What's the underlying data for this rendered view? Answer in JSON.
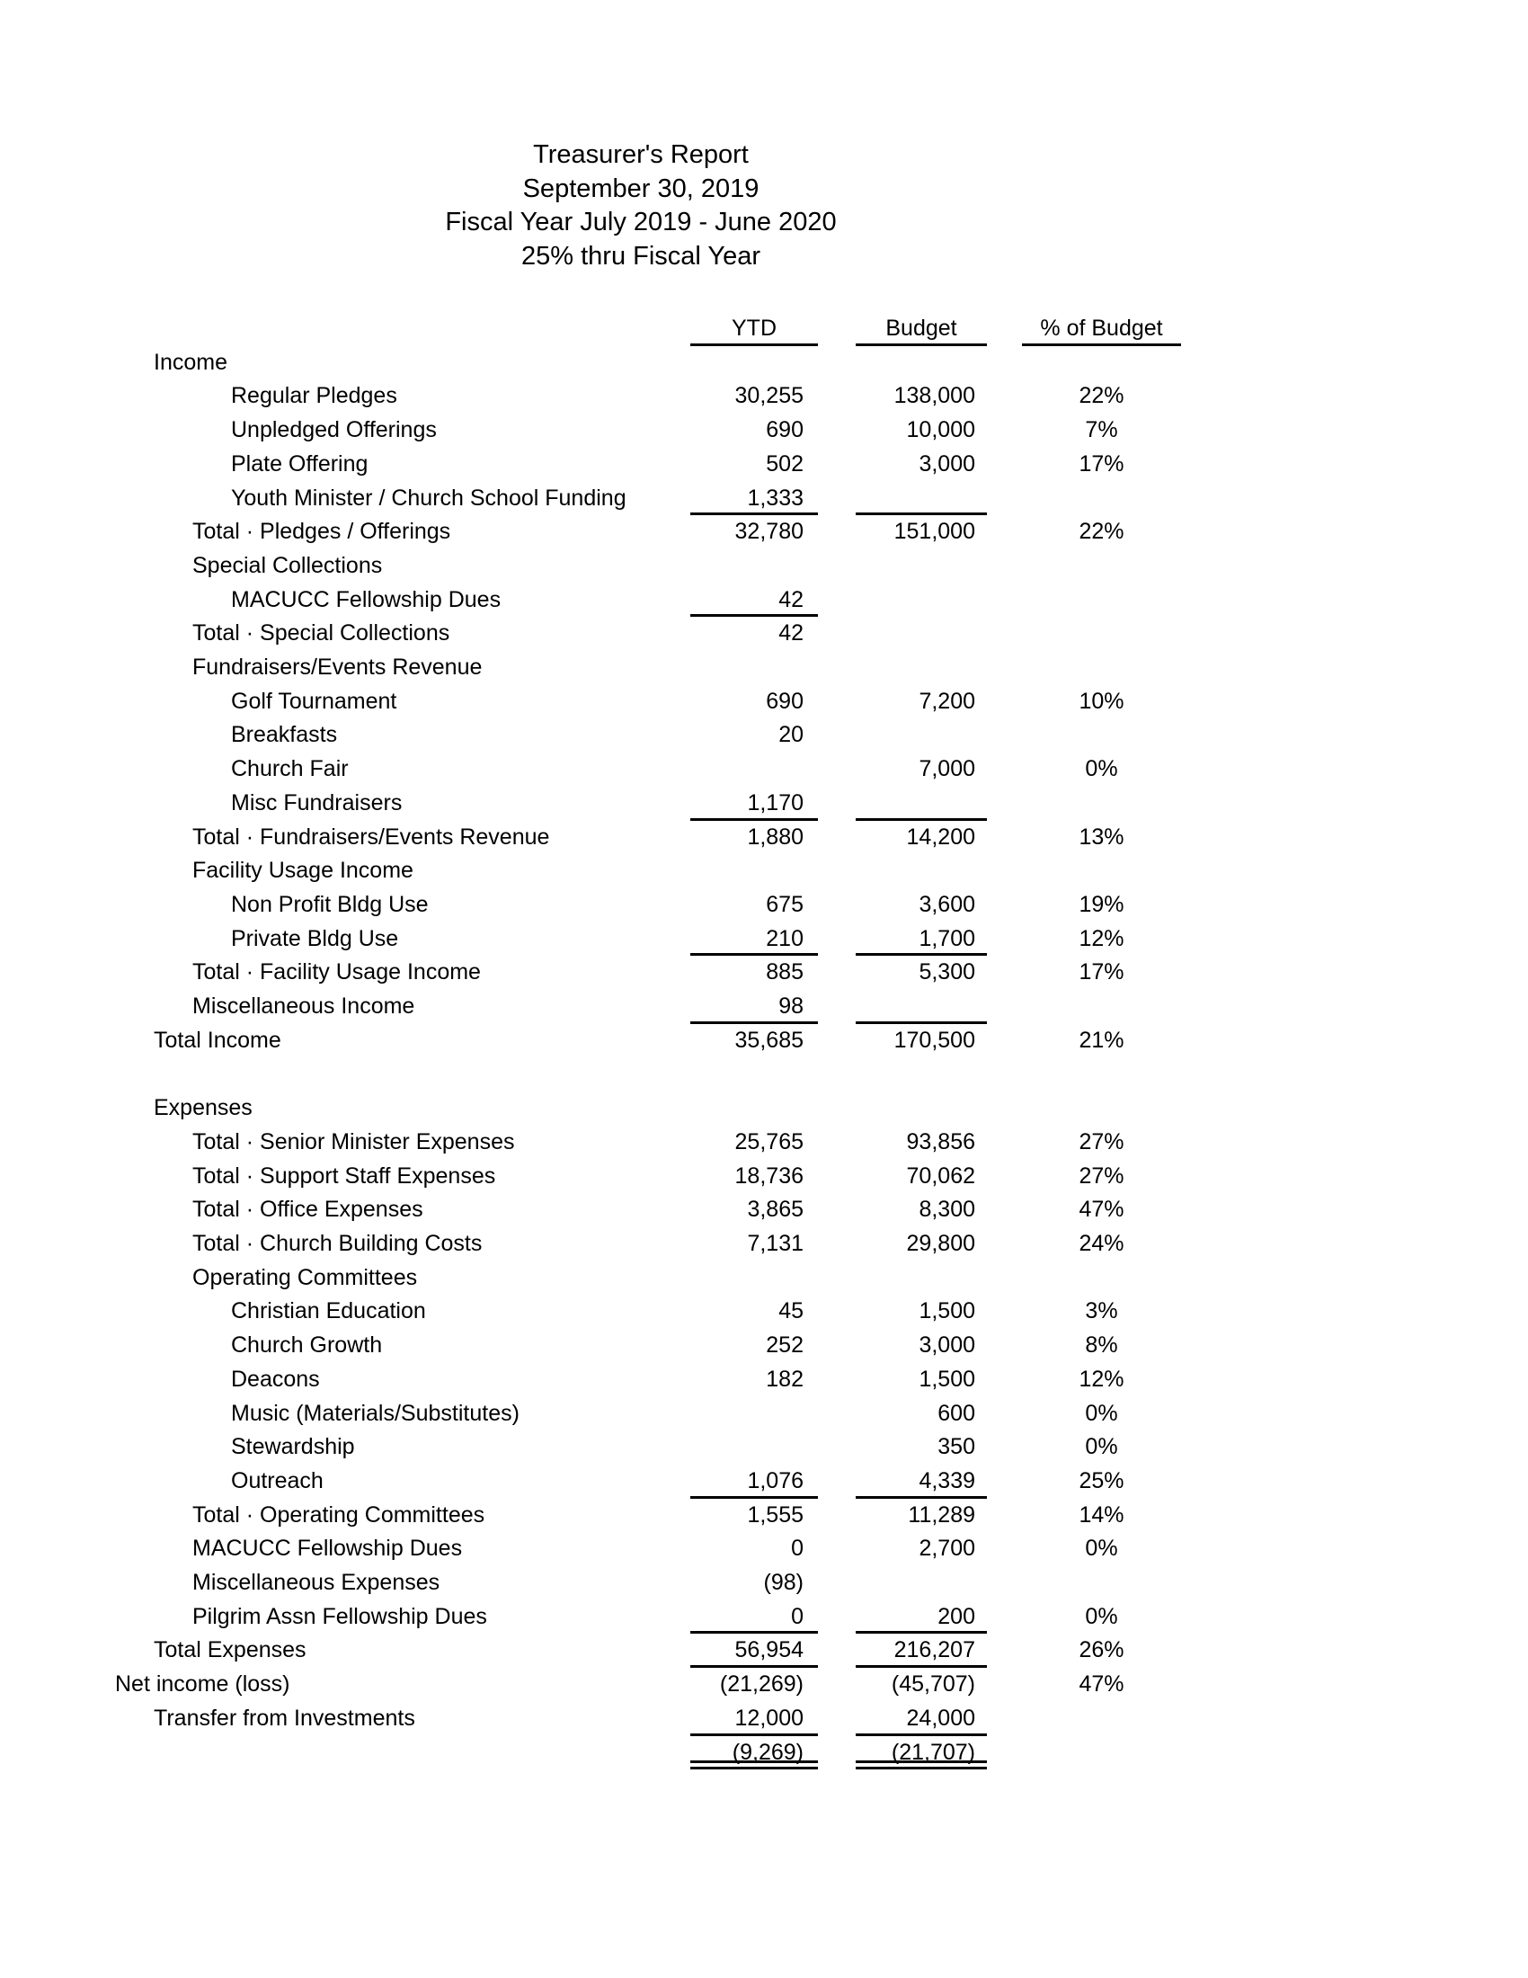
{
  "title": {
    "lines": [
      "Treasurer's Report",
      "September 30, 2019",
      "Fiscal Year July 2019 - June 2020",
      "25% thru Fiscal Year"
    ]
  },
  "columns": {
    "ytd": "YTD",
    "budget": "Budget",
    "pct": "% of Budget"
  },
  "rows": [
    {
      "label": "Income",
      "indent": 1,
      "ytd": "",
      "budget": "",
      "pct": ""
    },
    {
      "label": "Regular Pledges",
      "indent": 3,
      "ytd": "30,255",
      "budget": "138,000",
      "pct": "22%"
    },
    {
      "label": "Unpledged Offerings",
      "indent": 3,
      "ytd": "690",
      "budget": "10,000",
      "pct": "7%"
    },
    {
      "label": "Plate Offering",
      "indent": 3,
      "ytd": "502",
      "budget": "3,000",
      "pct": "17%"
    },
    {
      "label": "Youth Minister / Church School Funding",
      "indent": 3,
      "ytd": "1,333",
      "budget": "",
      "pct": "",
      "rule_ytd": true,
      "rule_budget": true
    },
    {
      "label": "Total · Pledges / Offerings",
      "indent": 2,
      "ytd": "32,780",
      "budget": "151,000",
      "pct": "22%"
    },
    {
      "label": "Special Collections",
      "indent": 2,
      "ytd": "",
      "budget": "",
      "pct": ""
    },
    {
      "label": "MACUCC Fellowship Dues",
      "indent": 3,
      "ytd": "42",
      "budget": "",
      "pct": "",
      "rule_ytd": true
    },
    {
      "label": "Total · Special Collections",
      "indent": 2,
      "ytd": "42",
      "budget": "",
      "pct": ""
    },
    {
      "label": "Fundraisers/Events Revenue",
      "indent": 2,
      "ytd": "",
      "budget": "",
      "pct": ""
    },
    {
      "label": "Golf Tournament",
      "indent": 3,
      "ytd": "690",
      "budget": "7,200",
      "pct": "10%"
    },
    {
      "label": "Breakfasts",
      "indent": 3,
      "ytd": "20",
      "budget": "",
      "pct": ""
    },
    {
      "label": "Church Fair",
      "indent": 3,
      "ytd": "",
      "budget": "7,000",
      "pct": "0%"
    },
    {
      "label": "Misc Fundraisers",
      "indent": 3,
      "ytd": "1,170",
      "budget": "",
      "pct": "",
      "rule_ytd": true,
      "rule_budget": true
    },
    {
      "label": "Total · Fundraisers/Events Revenue",
      "indent": 2,
      "ytd": "1,880",
      "budget": "14,200",
      "pct": "13%"
    },
    {
      "label": "Facility Usage Income",
      "indent": 2,
      "ytd": "",
      "budget": "",
      "pct": ""
    },
    {
      "label": "Non Profit Bldg Use",
      "indent": 3,
      "ytd": "675",
      "budget": "3,600",
      "pct": "19%"
    },
    {
      "label": "Private Bldg Use",
      "indent": 3,
      "ytd": "210",
      "budget": "1,700",
      "pct": "12%",
      "rule_ytd": true,
      "rule_budget": true
    },
    {
      "label": "Total · Facility Usage Income",
      "indent": 2,
      "ytd": "885",
      "budget": "5,300",
      "pct": "17%"
    },
    {
      "label": "Miscellaneous Income",
      "indent": 2,
      "ytd": "98",
      "budget": "",
      "pct": "",
      "rule_ytd": true,
      "rule_budget": true
    },
    {
      "label": "Total Income",
      "indent": 1,
      "ytd": "35,685",
      "budget": "170,500",
      "pct": "21%"
    },
    {
      "label": "",
      "indent": 0,
      "ytd": "",
      "budget": "",
      "pct": ""
    },
    {
      "label": "Expenses",
      "indent": 1,
      "ytd": "",
      "budget": "",
      "pct": ""
    },
    {
      "label": "Total · Senior Minister Expenses",
      "indent": 2,
      "ytd": "25,765",
      "budget": "93,856",
      "pct": "27%"
    },
    {
      "label": "Total · Support Staff Expenses",
      "indent": 2,
      "ytd": "18,736",
      "budget": "70,062",
      "pct": "27%"
    },
    {
      "label": "Total · Office Expenses",
      "indent": 2,
      "ytd": "3,865",
      "budget": "8,300",
      "pct": "47%"
    },
    {
      "label": "Total · Church Building Costs",
      "indent": 2,
      "ytd": "7,131",
      "budget": "29,800",
      "pct": "24%"
    },
    {
      "label": "Operating Committees",
      "indent": 2,
      "ytd": "",
      "budget": "",
      "pct": ""
    },
    {
      "label": "Christian Education",
      "indent": 3,
      "ytd": "45",
      "budget": "1,500",
      "pct": "3%"
    },
    {
      "label": "Church Growth",
      "indent": 3,
      "ytd": "252",
      "budget": "3,000",
      "pct": "8%"
    },
    {
      "label": "Deacons",
      "indent": 3,
      "ytd": "182",
      "budget": "1,500",
      "pct": "12%"
    },
    {
      "label": "Music (Materials/Substitutes)",
      "indent": 3,
      "ytd": "",
      "budget": "600",
      "pct": "0%"
    },
    {
      "label": "Stewardship",
      "indent": 3,
      "ytd": "",
      "budget": "350",
      "pct": "0%"
    },
    {
      "label": "Outreach",
      "indent": 3,
      "ytd": "1,076",
      "budget": "4,339",
      "pct": "25%",
      "rule_ytd": true,
      "rule_budget": true
    },
    {
      "label": "Total · Operating Committees",
      "indent": 2,
      "ytd": "1,555",
      "budget": "11,289",
      "pct": "14%"
    },
    {
      "label": "MACUCC Fellowship Dues",
      "indent": 2,
      "ytd": "0",
      "budget": "2,700",
      "pct": "0%"
    },
    {
      "label": "Miscellaneous Expenses",
      "indent": 2,
      "ytd": "(98)",
      "budget": "",
      "pct": ""
    },
    {
      "label": "Pilgrim Assn Fellowship Dues",
      "indent": 2,
      "ytd": "0",
      "budget": "200",
      "pct": "0%",
      "rule_ytd": true,
      "rule_budget": true
    },
    {
      "label": "Total Expenses",
      "indent": 1,
      "ytd": "56,954",
      "budget": "216,207",
      "pct": "26%",
      "rule_ytd": true,
      "rule_budget": true
    },
    {
      "label": "Net income (loss)",
      "indent": 0,
      "ytd": "(21,269)",
      "budget": "(45,707)",
      "pct": "47%"
    },
    {
      "label": "Transfer from Investments",
      "indent": 1,
      "ytd": "12,000",
      "budget": "24,000",
      "pct": "",
      "rule_ytd": true,
      "rule_budget": true
    },
    {
      "label": "",
      "indent": 0,
      "ytd": "(9,269)",
      "budget": "(21,707)",
      "pct": "",
      "double": true
    }
  ]
}
